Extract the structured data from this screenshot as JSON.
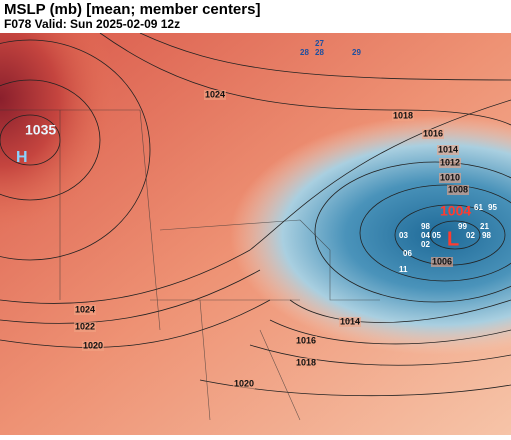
{
  "header": {
    "title": "MSLP (mb) [mean; member centers]",
    "subtitle": "F078 Valid: Sun 2025-02-09 12z"
  },
  "map": {
    "isobar_labels": [
      1024,
      1018,
      1016,
      1014,
      1012,
      1010,
      1008,
      1006,
      1024,
      1022,
      1020,
      1014,
      1016,
      1018,
      1020
    ],
    "high": {
      "value": 1035,
      "symbol": "H"
    },
    "low": {
      "value": 1004,
      "symbol": "L"
    },
    "member_centers": [
      "27",
      "28",
      "28",
      "29",
      "03",
      "98",
      "04",
      "05",
      "02",
      "99",
      "02",
      "21",
      "98",
      "06",
      "11",
      "61",
      "95"
    ]
  }
}
